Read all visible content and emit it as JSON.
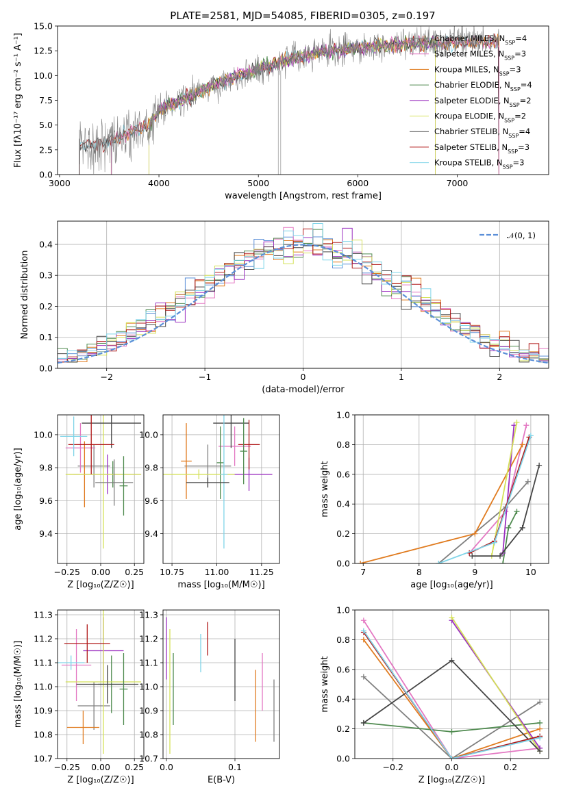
{
  "colors": {
    "Chabrier MILES": "#7f7f7f",
    "Salpeter MILES": "#e377c2",
    "Kroupa MILES": "#e07b1f",
    "Chabrier ELODIE": "#4f8a4f",
    "Salpeter ELODIE": "#9b30c0",
    "Kroupa ELODIE": "#d4e157",
    "Chabrier STELIB": "#444444",
    "Salpeter STELIB": "#b01818",
    "Kroupa STELIB": "#7fd4e8",
    "Chabrier MILES hist": "#5b8fd8",
    "normal": "#5b8fd8"
  },
  "chart_data": [
    {
      "id": "spectrum",
      "type": "line",
      "title": "PLATE=2581, MJD=54085, FIBERID=0305, z=0.197",
      "xlabel": "wavelength [Angstrom, rest frame]",
      "ylabel": "Flux [fλ10⁻¹⁷ erg cm⁻² s⁻¹ A⁻¹]",
      "xlim": [
        2980,
        7920
      ],
      "ylim": [
        0,
        15
      ],
      "xticks": [
        3000,
        4000,
        5000,
        6000,
        7000
      ],
      "yticks": [
        "0.0",
        "2.5",
        "5.0",
        "7.5",
        "10.0",
        "12.5",
        "15.0"
      ],
      "legend_position": "right",
      "legend": [
        {
          "name": "Chabrier MILES",
          "nssp": "4"
        },
        {
          "name": "Salpeter MILES",
          "nssp": "3"
        },
        {
          "name": "Kroupa MILES",
          "nssp": "3"
        },
        {
          "name": "Chabrier ELODIE",
          "nssp": "4"
        },
        {
          "name": "Salpeter ELODIE",
          "nssp": "2"
        },
        {
          "name": "Kroupa ELODIE",
          "nssp": "2"
        },
        {
          "name": "Chabrier STELIB",
          "nssp": "4"
        },
        {
          "name": "Salpeter STELIB",
          "nssp": "3"
        },
        {
          "name": "Kroupa STELIB",
          "nssp": "3"
        }
      ],
      "continuum": {
        "x": [
          3200,
          3500,
          3700,
          3900,
          4000,
          4200,
          4500,
          4800,
          5000,
          5300,
          5600,
          6000,
          6400,
          6800,
          7200,
          7500
        ],
        "y": [
          2.8,
          3.3,
          4.2,
          5.0,
          6.5,
          7.4,
          8.8,
          10.0,
          10.6,
          11.6,
          12.3,
          12.8,
          13.2,
          13.3,
          13.4,
          13.5
        ]
      }
    },
    {
      "id": "residual-histogram",
      "type": "line",
      "xlabel": "(data-model)/error",
      "ylabel": "Normed distribution",
      "xlim": [
        -2.5,
        2.5
      ],
      "ylim": [
        0,
        0.475
      ],
      "xticks": [
        "−2",
        "−1",
        "0",
        "1",
        "2"
      ],
      "yticks": [
        "0.0",
        "0.1",
        "0.2",
        "0.3",
        "0.4"
      ],
      "legend_position": "top-right",
      "legend": [
        "𝒩(0, 1)"
      ],
      "bin_width": 0.1
    },
    {
      "id": "age-vs-Z",
      "type": "scatter",
      "xlabel": "Z [log₁₀(Z/Z☉)]",
      "ylabel": "age  [log₁₀(age/yr)]",
      "xlim": [
        -0.32,
        0.32
      ],
      "ylim": [
        9.22,
        10.12
      ],
      "xticks": [
        "−0.25",
        "0.00",
        "0.25"
      ],
      "yticks": [
        "9.4",
        "9.6",
        "9.8",
        "10.0"
      ],
      "points": [
        {
          "model": "Chabrier MILES",
          "x": -0.05,
          "y": 9.81,
          "xerr": 0.12,
          "yerr": 0.13
        },
        {
          "model": "Salpeter MILES",
          "x": -0.15,
          "y": 9.92,
          "xerr": 0.11,
          "yerr": 0.15
        },
        {
          "model": "Kroupa MILES",
          "x": -0.12,
          "y": 9.76,
          "xerr": 0.12,
          "yerr": 0.2
        },
        {
          "model": "Chabrier ELODIE",
          "x": 0.09,
          "y": 9.76,
          "xerr": 0.13,
          "yerr": 0.08
        },
        {
          "model": "Salpeter ELODIE",
          "x": 0.05,
          "y": 9.76,
          "xerr": 0.25,
          "yerr": 0.12
        },
        {
          "model": "Kroupa ELODIE",
          "x": 0.02,
          "y": 9.76,
          "xerr": 0.28,
          "yerr": 0.45
        },
        {
          "model": "Chabrier STELIB",
          "x": 0.08,
          "y": 10.07,
          "xerr": 0.22,
          "yerr": 0.15
        },
        {
          "model": "Salpeter STELIB",
          "x": -0.07,
          "y": 9.94,
          "xerr": 0.17,
          "yerr": 0.18
        },
        {
          "model": "Kroupa STELIB",
          "x": -0.2,
          "y": 9.99,
          "xerr": 0.1,
          "yerr": 0.12
        },
        {
          "model": "Chabrier MILES",
          "x": 0.1,
          "y": 9.71,
          "xerr": 0.14,
          "yerr": 0.14
        },
        {
          "model": "Chabrier ELODIE",
          "x": 0.17,
          "y": 9.69,
          "xerr": 0.03,
          "yerr": 0.18
        }
      ]
    },
    {
      "id": "age-vs-mass",
      "type": "scatter",
      "xlabel": "mass [log₁₀(M/M☉)]",
      "xlim": [
        10.7,
        11.35
      ],
      "ylim": [
        9.22,
        10.12
      ],
      "xticks": [
        "10.75",
        "11.00",
        "11.25"
      ],
      "yticks": [
        "9.4",
        "9.6",
        "9.8",
        "10.0"
      ],
      "points": [
        {
          "model": "Chabrier MILES",
          "x": 10.95,
          "y": 9.81,
          "xerr": 0.13,
          "yerr": 0.13
        },
        {
          "model": "Salpeter MILES",
          "x": 11.1,
          "y": 9.93,
          "xerr": 0.09,
          "yerr": 0.12
        },
        {
          "model": "Kroupa MILES",
          "x": 10.83,
          "y": 9.84,
          "xerr": 0.03,
          "yerr": 0.23
        },
        {
          "model": "Chabrier ELODIE",
          "x": 11.02,
          "y": 9.83,
          "xerr": 0.02,
          "yerr": 0.22
        },
        {
          "model": "Salpeter ELODIE",
          "x": 11.18,
          "y": 9.76,
          "xerr": 0.13,
          "yerr": 0.1
        },
        {
          "model": "Kroupa ELODIE",
          "x": 10.9,
          "y": 9.76,
          "xerr": 0.2,
          "yerr": 0.03
        },
        {
          "model": "Chabrier STELIB",
          "x": 11.08,
          "y": 10.07,
          "xerr": 0.1,
          "yerr": 0.15
        },
        {
          "model": "Salpeter STELIB",
          "x": 11.18,
          "y": 9.94,
          "xerr": 0.06,
          "yerr": 0.15
        },
        {
          "model": "Kroupa STELIB",
          "x": 11.04,
          "y": 9.76,
          "xerr": 0.02,
          "yerr": 0.45
        },
        {
          "model": "Chabrier STELIB",
          "x": 10.95,
          "y": 9.71,
          "xerr": 0.12,
          "yerr": 0.03
        },
        {
          "model": "Chabrier ELODIE",
          "x": 11.15,
          "y": 9.9,
          "xerr": 0.02,
          "yerr": 0.2
        }
      ]
    },
    {
      "id": "massweight-vs-age",
      "type": "line",
      "xlabel": "age  [log₁₀(age/yr)]",
      "ylabel": "mass weight",
      "xlim": [
        6.85,
        10.32
      ],
      "ylim": [
        0,
        1
      ],
      "xticks": [
        "7",
        "8",
        "9",
        "10"
      ],
      "yticks": [
        "0.0",
        "0.2",
        "0.4",
        "0.6",
        "0.8",
        "1.0"
      ],
      "series": [
        {
          "model": "Chabrier MILES",
          "x": [
            8.35,
            9.55,
            9.95
          ],
          "y": [
            0.0,
            0.38,
            0.55
          ]
        },
        {
          "model": "Salpeter MILES",
          "x": [
            8.9,
            9.55,
            9.92
          ],
          "y": [
            0.07,
            0.35,
            0.93
          ]
        },
        {
          "model": "Kroupa MILES",
          "x": [
            6.95,
            9.0,
            9.85
          ],
          "y": [
            0.0,
            0.2,
            0.8
          ]
        },
        {
          "model": "Chabrier ELODIE",
          "x": [
            9.5,
            9.6,
            9.75
          ],
          "y": [
            0.0,
            0.24,
            0.35
          ]
        },
        {
          "model": "Salpeter ELODIE",
          "x": [
            9.5,
            9.7
          ],
          "y": [
            0.07,
            0.93
          ]
        },
        {
          "model": "Kroupa ELODIE",
          "x": [
            9.3,
            9.75
          ],
          "y": [
            0.05,
            0.95
          ]
        },
        {
          "model": "Chabrier STELIB",
          "x": [
            8.95,
            9.45,
            9.85,
            10.15
          ],
          "y": [
            0.05,
            0.05,
            0.24,
            0.66
          ]
        },
        {
          "model": "Salpeter STELIB",
          "x": [
            8.9,
            9.35,
            9.97
          ],
          "y": [
            0.07,
            0.15,
            0.85
          ]
        },
        {
          "model": "Kroupa STELIB",
          "x": [
            8.35,
            9.35,
            10.0
          ],
          "y": [
            0.0,
            0.14,
            0.86
          ]
        }
      ]
    },
    {
      "id": "mass-vs-Z",
      "type": "scatter",
      "xlabel": "Z [log₁₀(Z/Z☉)]",
      "ylabel": "mass [log₁₀(M/M☉)]",
      "xlim": [
        -0.32,
        0.32
      ],
      "ylim": [
        10.7,
        11.32
      ],
      "xticks": [
        "−0.25",
        "0.00",
        "0.25"
      ],
      "yticks": [
        "10.7",
        "10.8",
        "10.9",
        "11.0",
        "11.1",
        "11.2",
        "11.3"
      ],
      "points": [
        {
          "model": "Chabrier MILES",
          "x": -0.05,
          "y": 10.92,
          "xerr": 0.12,
          "yerr": 0.1
        },
        {
          "model": "Salpeter MILES",
          "x": -0.18,
          "y": 11.09,
          "xerr": 0.11,
          "yerr": 0.15
        },
        {
          "model": "Kroupa MILES",
          "x": -0.13,
          "y": 10.83,
          "xerr": 0.12,
          "yerr": 0.07
        },
        {
          "model": "Chabrier ELODIE",
          "x": 0.08,
          "y": 11.01,
          "xerr": 0.1,
          "yerr": 0.12
        },
        {
          "model": "Salpeter ELODIE",
          "x": 0.02,
          "y": 11.15,
          "xerr": 0.15,
          "yerr": 0.14
        },
        {
          "model": "Kroupa ELODIE",
          "x": 0.02,
          "y": 11.02,
          "xerr": 0.28,
          "yerr": 0.3
        },
        {
          "model": "Chabrier STELIB",
          "x": 0.05,
          "y": 11.01,
          "xerr": 0.23,
          "yerr": 0.08
        },
        {
          "model": "Salpeter STELIB",
          "x": -0.1,
          "y": 11.18,
          "xerr": 0.17,
          "yerr": 0.08
        },
        {
          "model": "Kroupa STELIB",
          "x": -0.22,
          "y": 11.1,
          "xerr": 0.1,
          "yerr": 0.03
        },
        {
          "model": "Chabrier ELODIE",
          "x": 0.17,
          "y": 10.99,
          "xerr": 0.03,
          "yerr": 0.15
        }
      ]
    },
    {
      "id": "mass-vs-EBV",
      "type": "scatter",
      "xlabel": "E(B-V)",
      "xlim": [
        -0.005,
        0.165
      ],
      "ylim": [
        10.7,
        11.32
      ],
      "xticks": [
        "0.0",
        "0.1"
      ],
      "yticks": [
        "10.7",
        "10.8",
        "10.9",
        "11.0",
        "11.1",
        "11.2",
        "11.3"
      ],
      "points": [
        {
          "model": "Salpeter ELODIE",
          "x": 0.0,
          "y": 11.16,
          "yerr": 0.13
        },
        {
          "model": "Kroupa ELODIE",
          "x": 0.005,
          "y": 10.98,
          "yerr": 0.26
        },
        {
          "model": "Chabrier ELODIE",
          "x": 0.01,
          "y": 10.99,
          "yerr": 0.15
        },
        {
          "model": "Kroupa STELIB",
          "x": 0.05,
          "y": 11.14,
          "yerr": 0.08
        },
        {
          "model": "Salpeter STELIB",
          "x": 0.06,
          "y": 11.2,
          "yerr": 0.07
        },
        {
          "model": "Chabrier STELIB",
          "x": 0.1,
          "y": 11.07,
          "yerr": 0.13
        },
        {
          "model": "Kroupa MILES",
          "x": 0.13,
          "y": 10.92,
          "yerr": 0.15
        },
        {
          "model": "Salpeter MILES",
          "x": 0.14,
          "y": 11.02,
          "yerr": 0.12
        },
        {
          "model": "Chabrier MILES",
          "x": 0.157,
          "y": 10.9,
          "yerr": 0.13
        }
      ]
    },
    {
      "id": "massweight-vs-Z",
      "type": "line",
      "xlabel": "Z [log₁₀(Z/Z☉)]",
      "ylabel": "mass weight",
      "xlim": [
        -0.33,
        0.33
      ],
      "ylim": [
        0,
        1
      ],
      "xticks": [
        "−0.2",
        "0.0",
        "0.2"
      ],
      "yticks": [
        "0.0",
        "0.2",
        "0.4",
        "0.6",
        "0.8",
        "1.0"
      ],
      "series": [
        {
          "model": "Chabrier MILES",
          "x": [
            -0.3,
            0.0,
            0.3
          ],
          "y": [
            0.55,
            0.0,
            0.38
          ]
        },
        {
          "model": "Salpeter MILES",
          "x": [
            -0.3,
            0.0,
            0.3
          ],
          "y": [
            0.93,
            0.0,
            0.07
          ]
        },
        {
          "model": "Kroupa MILES",
          "x": [
            -0.3,
            0.0,
            0.3
          ],
          "y": [
            0.8,
            0.0,
            0.2
          ]
        },
        {
          "model": "Chabrier ELODIE",
          "x": [
            -0.3,
            0.0,
            0.3
          ],
          "y": [
            0.24,
            0.18,
            0.24
          ]
        },
        {
          "model": "Salpeter ELODIE",
          "x": [
            0.0,
            0.3
          ],
          "y": [
            0.93,
            0.07
          ]
        },
        {
          "model": "Kroupa ELODIE",
          "x": [
            0.0,
            0.3
          ],
          "y": [
            0.95,
            0.05
          ]
        },
        {
          "model": "Chabrier STELIB",
          "x": [
            -0.3,
            0.0,
            0.3
          ],
          "y": [
            0.24,
            0.66,
            0.05
          ]
        },
        {
          "model": "Salpeter STELIB",
          "x": [
            -0.3,
            0.0,
            0.3
          ],
          "y": [
            0.85,
            0.0,
            0.15
          ]
        },
        {
          "model": "Kroupa STELIB",
          "x": [
            -0.3,
            0.0,
            0.3
          ],
          "y": [
            0.86,
            0.0,
            0.14
          ]
        }
      ]
    }
  ]
}
